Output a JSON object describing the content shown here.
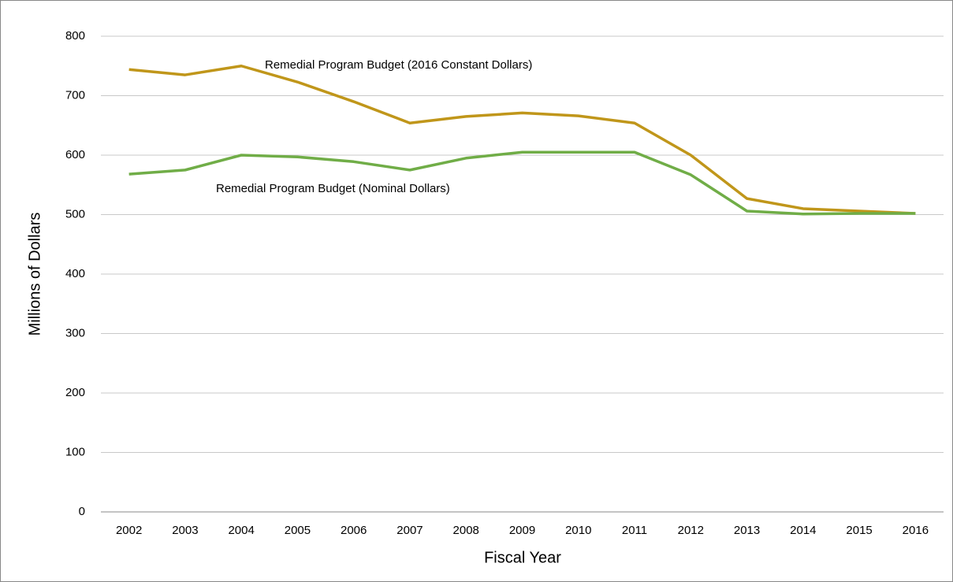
{
  "chart_data": {
    "type": "line",
    "x_label": "Fiscal Year",
    "y_label": "Millions of Dollars",
    "categories": [
      "2002",
      "2003",
      "2004",
      "2005",
      "2006",
      "2007",
      "2008",
      "2009",
      "2010",
      "2011",
      "2012",
      "2013",
      "2014",
      "2015",
      "2016"
    ],
    "series": [
      {
        "name": "Remedial Program Budget (2016 Constant Dollars)",
        "color": "#c0961a",
        "values": [
          744,
          735,
          750,
          723,
          690,
          654,
          665,
          671,
          666,
          654,
          600,
          527,
          510,
          506,
          502
        ]
      },
      {
        "name": "Remedial Program Budget (Nominal Dollars)",
        "color": "#70ad47",
        "values": [
          568,
          575,
          600,
          597,
          589,
          575,
          595,
          605,
          605,
          605,
          567,
          506,
          501,
          502,
          502
        ]
      }
    ],
    "ylim": [
      0,
      800
    ],
    "yticks": [
      0,
      100,
      200,
      300,
      400,
      500,
      600,
      700,
      800
    ],
    "grid": true
  }
}
